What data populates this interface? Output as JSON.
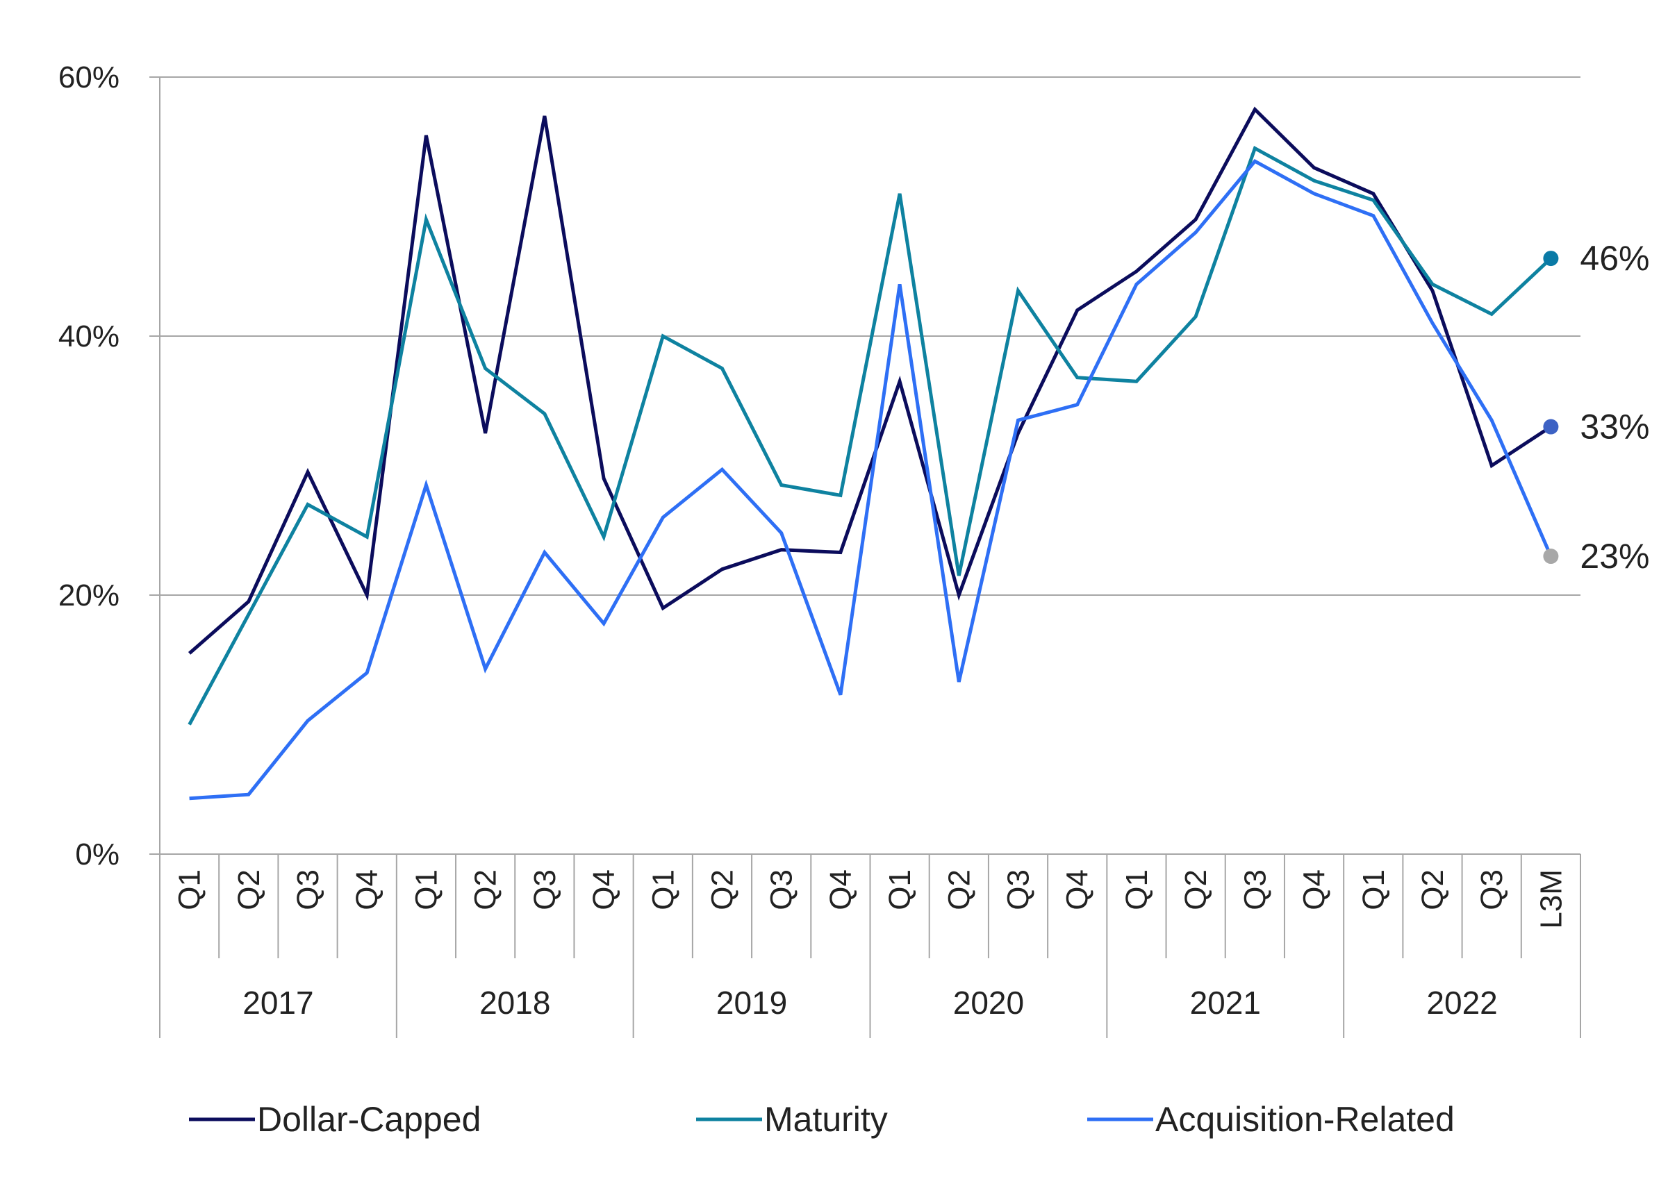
{
  "chart_data": {
    "type": "line",
    "title": "",
    "xlabel": "",
    "ylabel": "",
    "ylim": [
      0,
      60
    ],
    "y_ticks": [
      0,
      20,
      40,
      60
    ],
    "y_tick_labels": [
      "0%",
      "20%",
      "40%",
      "60%"
    ],
    "grid": "horizontal",
    "legend_position": "bottom",
    "categories": [
      "Q1",
      "Q2",
      "Q3",
      "Q4",
      "Q1",
      "Q2",
      "Q3",
      "Q4",
      "Q1",
      "Q2",
      "Q3",
      "Q4",
      "Q1",
      "Q2",
      "Q3",
      "Q4",
      "Q1",
      "Q2",
      "Q3",
      "Q4",
      "Q1",
      "Q2",
      "Q3",
      "L3M"
    ],
    "groups": [
      {
        "label": "2017",
        "count": 4
      },
      {
        "label": "2018",
        "count": 4
      },
      {
        "label": "2019",
        "count": 4
      },
      {
        "label": "2020",
        "count": 4
      },
      {
        "label": "2021",
        "count": 4
      },
      {
        "label": "2022",
        "count": 4
      }
    ],
    "series": [
      {
        "name": "Dollar-Capped",
        "color": "#0b0c5c",
        "values": [
          15.5,
          19.5,
          29.5,
          20.0,
          55.5,
          32.5,
          57.0,
          29.0,
          19.0,
          22.0,
          23.5,
          23.3,
          36.5,
          20.0,
          32.5,
          42.0,
          45.0,
          49.0,
          57.5,
          53.0,
          51.0,
          43.5,
          30.0,
          33.0
        ],
        "end_label": "33%",
        "end_dot_color": "#3d62c4"
      },
      {
        "name": "Maturity",
        "color": "#0e82a0",
        "values": [
          10.0,
          18.5,
          27.0,
          24.5,
          49.0,
          37.5,
          34.0,
          24.5,
          40.0,
          37.5,
          28.5,
          27.7,
          51.0,
          21.5,
          43.5,
          36.8,
          36.5,
          41.5,
          54.5,
          52.0,
          50.5,
          44.0,
          41.7,
          46.0
        ],
        "end_label": "46%",
        "end_dot_color": "#0a7aa6"
      },
      {
        "name": "Acquisition-Related",
        "color": "#2e6ff5",
        "values": [
          4.3,
          4.6,
          10.3,
          14.0,
          28.5,
          14.3,
          23.3,
          17.8,
          26.0,
          29.7,
          24.8,
          12.3,
          44.0,
          13.3,
          33.5,
          34.7,
          44.0,
          48.0,
          53.5,
          51.0,
          49.3,
          41.0,
          33.5,
          23.0
        ],
        "end_label": "23%",
        "end_dot_color": "#a8a8a8"
      }
    ]
  }
}
